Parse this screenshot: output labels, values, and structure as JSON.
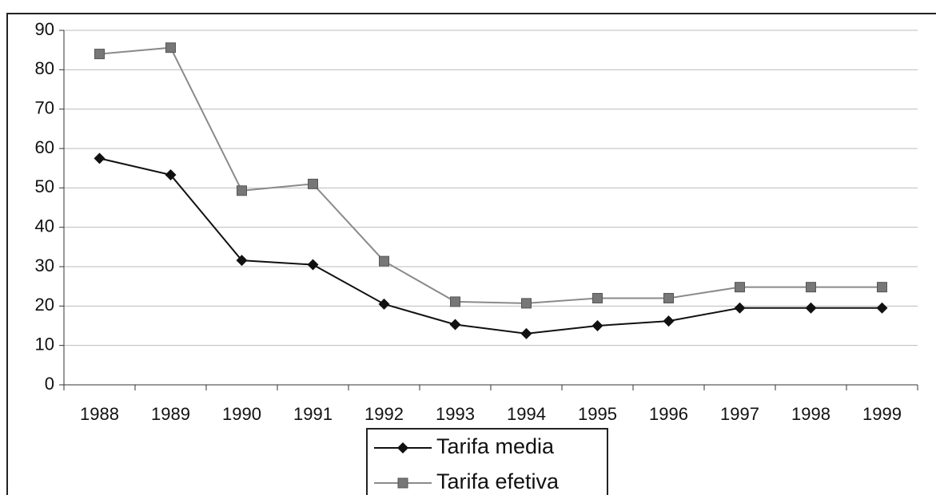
{
  "chart_data": {
    "type": "line",
    "categories": [
      "1988",
      "1989",
      "1990",
      "1991",
      "1992",
      "1993",
      "1994",
      "1995",
      "1996",
      "1997",
      "1998",
      "1999"
    ],
    "series": [
      {
        "name": "Tarifa media",
        "color": "#111111",
        "marker": "diamond",
        "values": [
          57.5,
          53.3,
          31.6,
          30.5,
          20.5,
          15.3,
          13.0,
          15.0,
          16.2,
          19.5,
          19.5,
          19.5
        ]
      },
      {
        "name": "Tarifa efetiva",
        "color": "#8a8a8a",
        "marker": "square",
        "values": [
          84.0,
          85.6,
          49.3,
          51.0,
          31.4,
          21.1,
          20.7,
          22.0,
          22.0,
          24.8,
          24.8,
          24.8
        ]
      }
    ],
    "ylim": [
      0,
      90
    ],
    "yticks": [
      0,
      10,
      20,
      30,
      40,
      50,
      60,
      70,
      80,
      90
    ],
    "grid": true
  }
}
